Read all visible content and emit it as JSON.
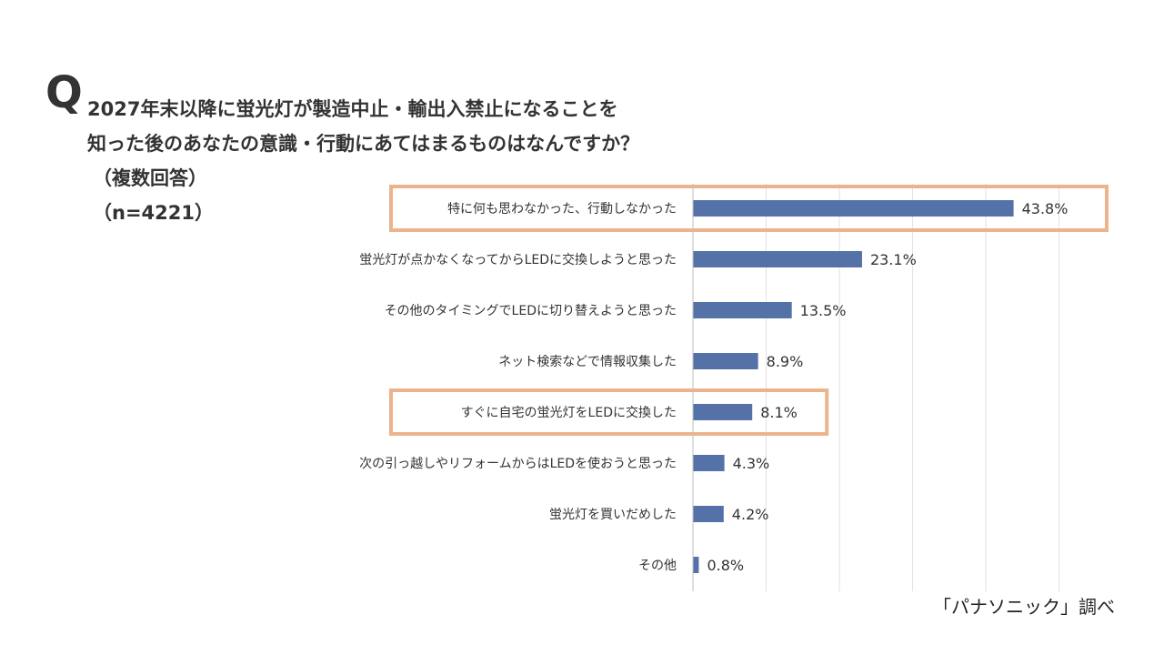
{
  "question": {
    "mark": "Q",
    "line1": "2027年末以降に蛍光灯が製造中止・輸出入禁止になることを",
    "line2": "知った後のあなたの意識・行動にあてはまるものはなんですか？",
    "line3": "（複数回答）",
    "line4": "（n=4221）"
  },
  "source": "「パナソニック」調べ",
  "colors": {
    "bar": "#5572a8",
    "highlight": "#ecb48c",
    "grid": "#e2e2e2",
    "text": "#333333"
  },
  "chart_data": {
    "type": "bar",
    "orientation": "horizontal",
    "categories": [
      "特に何も思わなかった、行動しなかった",
      "蛍光灯が点かなくなってからLEDに交換しようと思った",
      "その他のタイミングでLEDに切り替えようと思った",
      "ネット検索などで情報収集した",
      "すぐに自宅の蛍光灯をLEDに交換した",
      "次の引っ越しやリフォームからはLEDを使おうと思った",
      "蛍光灯を買いだめした",
      "その他"
    ],
    "values": [
      43.8,
      23.1,
      13.5,
      8.9,
      8.1,
      4.3,
      4.2,
      0.8
    ],
    "labels": [
      "43.8%",
      "23.1%",
      "13.5%",
      "8.9%",
      "8.1%",
      "4.3%",
      "4.2%",
      "0.8%"
    ],
    "highlighted": [
      0,
      4
    ],
    "xlim": [
      0,
      50
    ],
    "grid": true
  }
}
